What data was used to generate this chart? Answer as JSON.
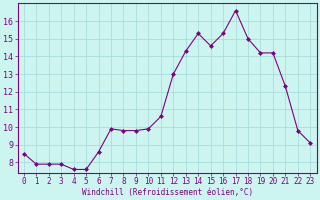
{
  "x": [
    0,
    1,
    2,
    3,
    4,
    5,
    6,
    7,
    8,
    9,
    10,
    11,
    12,
    13,
    14,
    15,
    16,
    17,
    18,
    19,
    20,
    21,
    22,
    23
  ],
  "y": [
    8.5,
    7.9,
    7.9,
    7.9,
    7.6,
    7.6,
    8.6,
    9.9,
    9.8,
    9.8,
    9.9,
    10.6,
    13.0,
    14.3,
    15.3,
    14.6,
    15.3,
    16.6,
    15.0,
    14.2,
    14.2,
    12.3,
    9.8,
    9.1
  ],
  "x_ticks": [
    0,
    1,
    2,
    3,
    4,
    5,
    6,
    7,
    8,
    9,
    10,
    11,
    12,
    13,
    14,
    15,
    16,
    17,
    18,
    19,
    20,
    21,
    22,
    23
  ],
  "y_ticks": [
    8,
    9,
    10,
    11,
    12,
    13,
    14,
    15,
    16
  ],
  "ylim": [
    7.4,
    17.0
  ],
  "xlim": [
    -0.5,
    23.5
  ],
  "line_color": "#800080",
  "marker_color": "#800080",
  "bg_color": "#cdf5f0",
  "grid_color": "#aadddd",
  "xlabel": "Windchill (Refroidissement éolien,°C)",
  "xlabel_color": "#800080",
  "tick_color": "#800080",
  "axis_color": "#800080",
  "tick_fontsize": 5.5,
  "xlabel_fontsize": 5.5
}
